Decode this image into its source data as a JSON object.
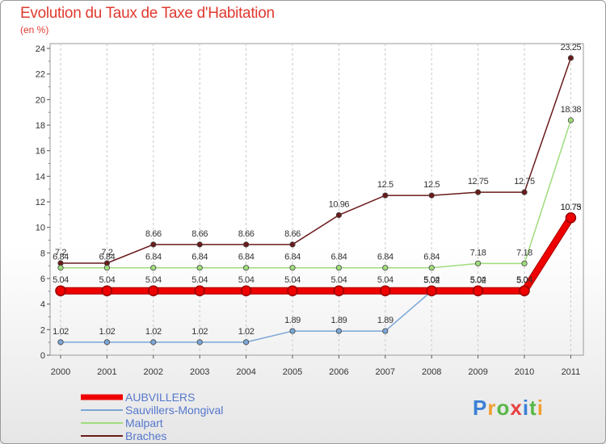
{
  "chart_data": {
    "type": "line",
    "title": "Evolution du Taux de Taxe d'Habitation",
    "subtitle": "(en %)",
    "categories": [
      "2000",
      "2001",
      "2002",
      "2003",
      "2004",
      "2005",
      "2006",
      "2007",
      "2008",
      "2009",
      "2010",
      "2011"
    ],
    "ylim": [
      0,
      24
    ],
    "yticks": [
      0,
      2,
      4,
      6,
      8,
      10,
      12,
      14,
      16,
      18,
      20,
      22,
      24
    ],
    "series": [
      {
        "name": "Braches",
        "color": "#6b1a1a",
        "values": [
          7.2,
          7.2,
          8.66,
          8.66,
          8.66,
          8.66,
          10.96,
          12.5,
          12.5,
          12.75,
          12.75,
          23.25
        ],
        "labels": [
          "7.2",
          "7.2",
          "8.66",
          "8.66",
          "8.66",
          "8.66",
          "10.96",
          "12.5",
          "12.5",
          "12.75",
          "12.75",
          "23.25"
        ]
      },
      {
        "name": "Malpart",
        "color": "#9fdc7c",
        "values": [
          6.84,
          6.84,
          6.84,
          6.84,
          6.84,
          6.84,
          6.84,
          6.84,
          6.84,
          7.18,
          7.18,
          18.38
        ],
        "labels": [
          "6.84",
          "6.84",
          "6.84",
          "6.84",
          "6.84",
          "6.84",
          "6.84",
          "6.84",
          "6.84",
          "7.18",
          "7.18",
          "18.38"
        ]
      },
      {
        "name": "Sauvillers-Mongival",
        "color": "#7aa6d6",
        "values": [
          1.02,
          1.02,
          1.02,
          1.02,
          1.02,
          1.89,
          1.89,
          1.89,
          5.02,
          5.02,
          5.02,
          10.73
        ],
        "labels": [
          "1.02",
          "1.02",
          "1.02",
          "1.02",
          "1.02",
          "1.89",
          "1.89",
          "1.89",
          "5.02",
          "5.02",
          "5.02",
          "10.73"
        ]
      },
      {
        "name": "AUBVILLERS",
        "color": "#ee0000",
        "values": [
          5.04,
          5.04,
          5.04,
          5.04,
          5.04,
          5.04,
          5.04,
          5.04,
          5.04,
          5.04,
          5.04,
          10.75
        ],
        "labels": [
          "5.04",
          "5.04",
          "5.04",
          "5.04",
          "5.04",
          "5.04",
          "5.04",
          "5.04",
          "5.04",
          "5.04",
          "5.04",
          "10.75"
        ]
      }
    ],
    "legend": [
      "AUBVILLERS",
      "Sauvillers-Mongival",
      "Malpart",
      "Braches"
    ],
    "legend_position": "bottom-left"
  },
  "logo": {
    "p": "P",
    "r": "r",
    "o": "o",
    "x": "x",
    "i": "i",
    "t": "t",
    "i2": "i"
  }
}
